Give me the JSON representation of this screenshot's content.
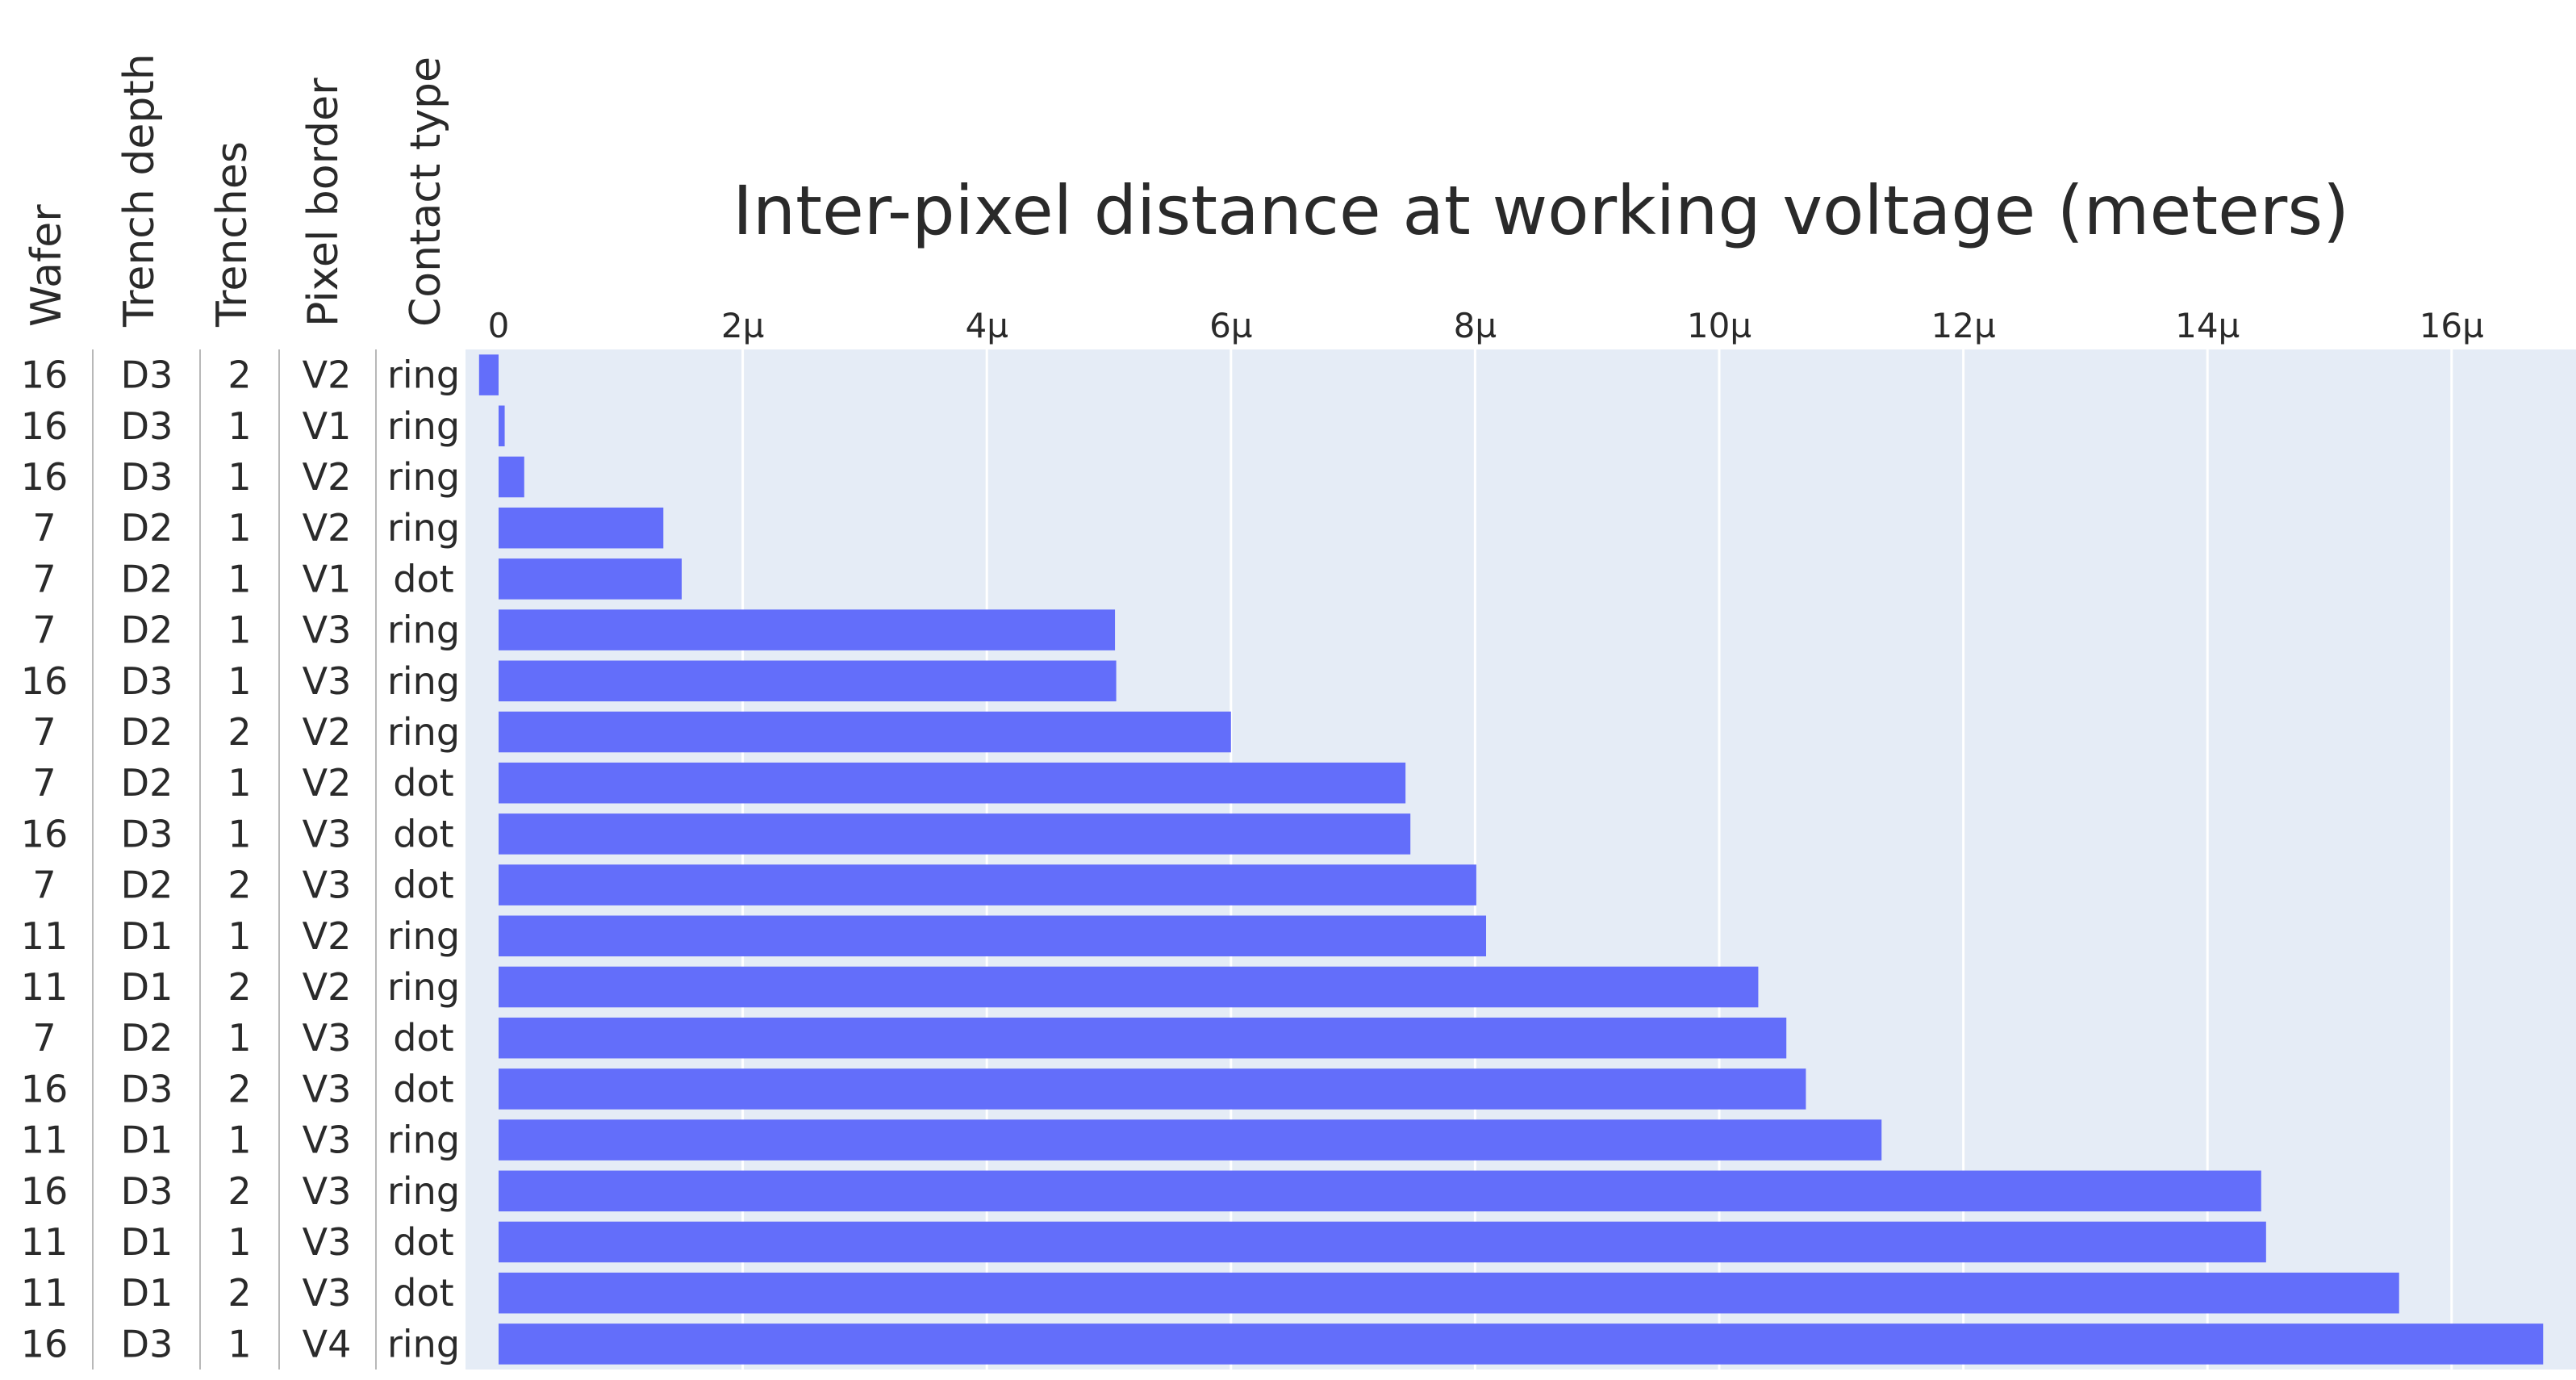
{
  "chart_data": {
    "type": "bar",
    "orientation": "horizontal",
    "title": "Inter-pixel distance at working voltage (meters)",
    "columns": [
      "Wafer",
      "Trench depth",
      "Trenches",
      "Pixel border",
      "Contact type"
    ],
    "rows": [
      [
        "16",
        "D3",
        "2",
        "V2",
        "ring"
      ],
      [
        "16",
        "D3",
        "1",
        "V1",
        "ring"
      ],
      [
        "16",
        "D3",
        "1",
        "V2",
        "ring"
      ],
      [
        "7",
        "D2",
        "1",
        "V2",
        "ring"
      ],
      [
        "7",
        "D2",
        "1",
        "V1",
        "dot"
      ],
      [
        "7",
        "D2",
        "1",
        "V3",
        "ring"
      ],
      [
        "16",
        "D3",
        "1",
        "V3",
        "ring"
      ],
      [
        "7",
        "D2",
        "2",
        "V2",
        "ring"
      ],
      [
        "7",
        "D2",
        "1",
        "V2",
        "dot"
      ],
      [
        "16",
        "D3",
        "1",
        "V3",
        "dot"
      ],
      [
        "7",
        "D2",
        "2",
        "V3",
        "dot"
      ],
      [
        "11",
        "D1",
        "1",
        "V2",
        "ring"
      ],
      [
        "11",
        "D1",
        "2",
        "V2",
        "ring"
      ],
      [
        "7",
        "D2",
        "1",
        "V3",
        "dot"
      ],
      [
        "16",
        "D3",
        "2",
        "V3",
        "dot"
      ],
      [
        "11",
        "D1",
        "1",
        "V3",
        "ring"
      ],
      [
        "16",
        "D3",
        "2",
        "V3",
        "ring"
      ],
      [
        "11",
        "D1",
        "1",
        "V3",
        "dot"
      ],
      [
        "11",
        "D1",
        "2",
        "V3",
        "dot"
      ],
      [
        "16",
        "D3",
        "1",
        "V4",
        "ring"
      ]
    ],
    "values": [
      -0.16,
      0.05,
      0.21,
      1.35,
      1.5,
      5.05,
      5.06,
      6.0,
      7.43,
      7.47,
      8.01,
      8.09,
      10.32,
      10.55,
      10.71,
      11.33,
      14.44,
      14.48,
      15.57,
      16.75
    ],
    "xlim": [
      -0.3,
      17.0
    ],
    "xticks": [
      0,
      2,
      4,
      6,
      8,
      10,
      12,
      14,
      16
    ],
    "xtick_labels": [
      "0",
      "2µ",
      "4µ",
      "6µ",
      "8µ",
      "10µ",
      "12µ",
      "14µ",
      "16µ"
    ],
    "grid": true,
    "bar_color": "#636efa",
    "plot_bg": "#e5ecf6",
    "grid_color": "#ffffff"
  }
}
